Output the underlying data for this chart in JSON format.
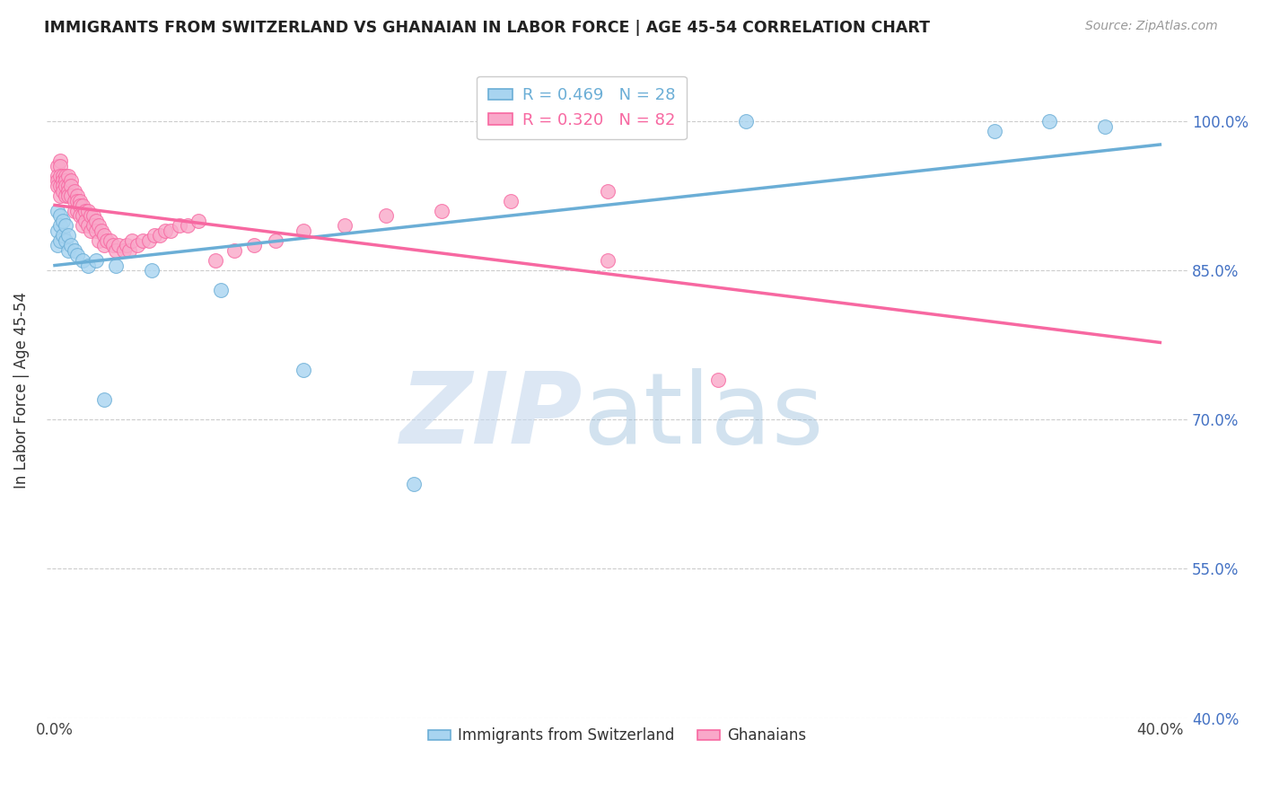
{
  "title": "IMMIGRANTS FROM SWITZERLAND VS GHANAIAN IN LABOR FORCE | AGE 45-54 CORRELATION CHART",
  "source": "Source: ZipAtlas.com",
  "ylabel": "In Labor Force | Age 45-54",
  "R_swiss": 0.469,
  "N_swiss": 28,
  "R_ghana": 0.32,
  "N_ghana": 82,
  "swiss_color": "#6baed6",
  "ghana_color": "#f768a1",
  "swiss_fill": "#a8d4f0",
  "ghana_fill": "#f9a8c9",
  "xlim": [
    -0.003,
    0.41
  ],
  "ylim": [
    0.4,
    1.06
  ],
  "x_ticks": [
    0.0,
    0.05,
    0.1,
    0.15,
    0.2,
    0.25,
    0.3,
    0.35,
    0.4
  ],
  "x_tick_labels": [
    "0.0%",
    "",
    "",
    "",
    "",
    "",
    "",
    "",
    "40.0%"
  ],
  "y_ticks": [
    0.4,
    0.55,
    0.7,
    0.85,
    1.0
  ],
  "y_tick_labels": [
    "40.0%",
    "55.0%",
    "70.0%",
    "85.0%",
    "100.0%"
  ],
  "swiss_x": [
    0.001,
    0.001,
    0.001,
    0.002,
    0.002,
    0.002,
    0.003,
    0.003,
    0.004,
    0.004,
    0.005,
    0.005,
    0.006,
    0.007,
    0.008,
    0.01,
    0.012,
    0.015,
    0.018,
    0.022,
    0.035,
    0.06,
    0.09,
    0.13,
    0.25,
    0.34,
    0.36,
    0.38
  ],
  "swiss_y": [
    0.91,
    0.89,
    0.875,
    0.905,
    0.895,
    0.88,
    0.9,
    0.885,
    0.895,
    0.88,
    0.885,
    0.87,
    0.875,
    0.87,
    0.865,
    0.86,
    0.855,
    0.86,
    0.72,
    0.855,
    0.85,
    0.83,
    0.75,
    0.635,
    1.0,
    0.99,
    1.0,
    0.995
  ],
  "ghana_x": [
    0.001,
    0.001,
    0.001,
    0.001,
    0.002,
    0.002,
    0.002,
    0.002,
    0.002,
    0.003,
    0.003,
    0.003,
    0.003,
    0.004,
    0.004,
    0.004,
    0.004,
    0.005,
    0.005,
    0.005,
    0.005,
    0.006,
    0.006,
    0.006,
    0.007,
    0.007,
    0.007,
    0.008,
    0.008,
    0.008,
    0.009,
    0.009,
    0.009,
    0.01,
    0.01,
    0.01,
    0.011,
    0.011,
    0.012,
    0.012,
    0.013,
    0.013,
    0.014,
    0.014,
    0.015,
    0.015,
    0.016,
    0.016,
    0.017,
    0.018,
    0.018,
    0.019,
    0.02,
    0.021,
    0.022,
    0.023,
    0.025,
    0.026,
    0.027,
    0.028,
    0.03,
    0.032,
    0.034,
    0.036,
    0.038,
    0.04,
    0.042,
    0.045,
    0.048,
    0.052,
    0.058,
    0.065,
    0.072,
    0.08,
    0.09,
    0.105,
    0.12,
    0.14,
    0.165,
    0.2,
    0.24,
    0.2
  ],
  "ghana_y": [
    0.955,
    0.945,
    0.94,
    0.935,
    0.96,
    0.955,
    0.945,
    0.935,
    0.925,
    0.945,
    0.94,
    0.935,
    0.93,
    0.945,
    0.94,
    0.935,
    0.925,
    0.945,
    0.935,
    0.93,
    0.925,
    0.94,
    0.935,
    0.925,
    0.93,
    0.92,
    0.91,
    0.925,
    0.92,
    0.91,
    0.92,
    0.915,
    0.905,
    0.915,
    0.905,
    0.895,
    0.91,
    0.9,
    0.91,
    0.895,
    0.905,
    0.89,
    0.905,
    0.895,
    0.9,
    0.89,
    0.895,
    0.88,
    0.89,
    0.885,
    0.875,
    0.88,
    0.88,
    0.875,
    0.87,
    0.875,
    0.87,
    0.875,
    0.87,
    0.88,
    0.875,
    0.88,
    0.88,
    0.885,
    0.885,
    0.89,
    0.89,
    0.895,
    0.895,
    0.9,
    0.86,
    0.87,
    0.875,
    0.88,
    0.89,
    0.895,
    0.905,
    0.91,
    0.92,
    0.93,
    0.74,
    0.86
  ]
}
